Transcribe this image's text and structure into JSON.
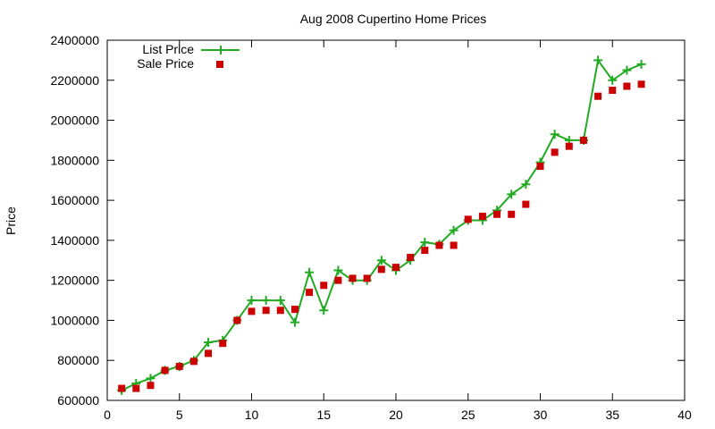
{
  "chart_data": {
    "type": "scatter",
    "title": "Aug 2008 Cupertino Home Prices",
    "xlabel": "",
    "ylabel": "Price",
    "xlim": [
      0,
      40
    ],
    "ylim": [
      600000,
      2400000
    ],
    "xticks": [
      "0",
      "5",
      "10",
      "15",
      "20",
      "25",
      "30",
      "35",
      "40"
    ],
    "yticks": [
      "600000",
      "800000",
      "1000000",
      "1200000",
      "1400000",
      "1600000",
      "1800000",
      "2000000",
      "2200000",
      "2400000"
    ],
    "legend_position": "top-left",
    "grid": false,
    "x": [
      1,
      2,
      3,
      4,
      5,
      6,
      7,
      8,
      9,
      10,
      11,
      12,
      13,
      14,
      15,
      16,
      17,
      18,
      19,
      20,
      21,
      22,
      23,
      24,
      25,
      26,
      27,
      28,
      29,
      30,
      31,
      32,
      33,
      34,
      35,
      36,
      37
    ],
    "series": [
      {
        "name": "List Price",
        "style": "lines+points",
        "color": "#22aa22",
        "values": [
          650000,
          685000,
          710000,
          750000,
          770000,
          800000,
          890000,
          900000,
          1000000,
          1100000,
          1100000,
          1100000,
          990000,
          1240000,
          1050000,
          1250000,
          1200000,
          1200000,
          1300000,
          1250000,
          1300000,
          1390000,
          1380000,
          1450000,
          1500000,
          1500000,
          1550000,
          1630000,
          1680000,
          1790000,
          1930000,
          1900000,
          1900000,
          2300000,
          2200000,
          2250000,
          2280000
        ]
      },
      {
        "name": "Sale Price",
        "style": "points",
        "color": "#cc0000",
        "values": [
          660000,
          660000,
          675000,
          750000,
          770000,
          795000,
          835000,
          885000,
          1000000,
          1045000,
          1050000,
          1050000,
          1055000,
          1140000,
          1175000,
          1200000,
          1210000,
          1210000,
          1255000,
          1265000,
          1315000,
          1350000,
          1375000,
          1375000,
          1505000,
          1520000,
          1530000,
          1530000,
          1580000,
          1770000,
          1840000,
          1870000,
          1900000,
          2120000,
          2150000,
          2170000,
          2180000
        ]
      }
    ]
  }
}
